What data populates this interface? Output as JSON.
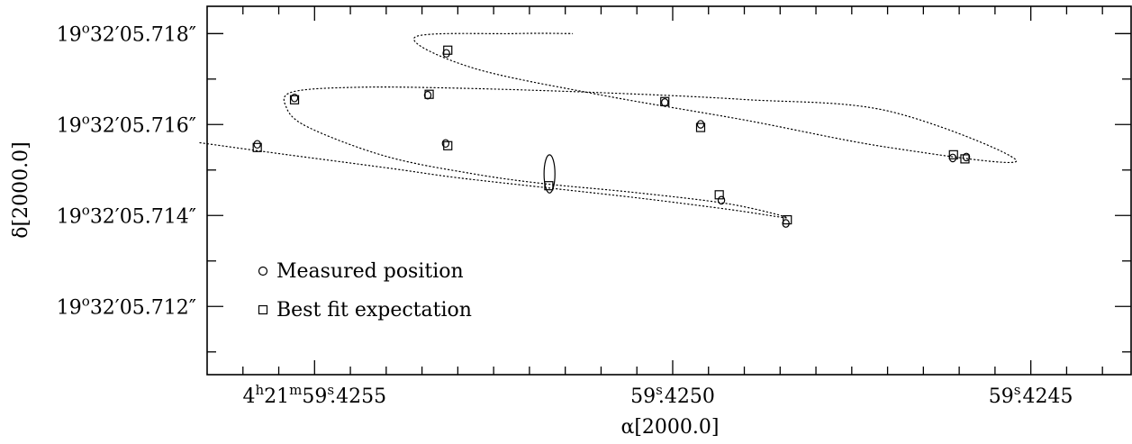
{
  "chart_data": {
    "type": "scatter",
    "xlabel": "α[2000.0]",
    "ylabel": "δ[2000.0]",
    "x_unit": "seconds of RA (4h21m59.xxxx s)",
    "y_unit": "arcsec of Dec (19°32'05.xxxxxx\")",
    "xlim": [
      59.42565,
      59.42436
    ],
    "ylim": [
      5.7105,
      5.7186
    ],
    "x_ticks": [
      {
        "value": 59.4255,
        "label_parts": [
          "4",
          "h",
          "21",
          "m",
          "59",
          "s",
          ".4255"
        ]
      },
      {
        "value": 59.425,
        "label_parts": [
          "59",
          "s",
          ".4250"
        ]
      },
      {
        "value": 59.4245,
        "label_parts": [
          "59",
          "s",
          ".4245"
        ]
      }
    ],
    "y_ticks": [
      {
        "value": 5.718,
        "label_parts": [
          "19",
          "o",
          "32′05.718″"
        ]
      },
      {
        "value": 5.716,
        "label_parts": [
          "19",
          "o",
          "32′05.716″"
        ]
      },
      {
        "value": 5.714,
        "label_parts": [
          "19",
          "o",
          "32′05.714″"
        ]
      },
      {
        "value": 5.712,
        "label_parts": [
          "19",
          "o",
          "32′05.712″"
        ]
      }
    ],
    "legend": {
      "placement": "bottom-left",
      "entries": [
        {
          "label": "Measured position",
          "marker": "circle"
        },
        {
          "label": "Best fit expectation",
          "marker": "square"
        }
      ]
    },
    "measured": [
      {
        "x": 59.42558,
        "y": 5.715565
      },
      {
        "x": 59.425528,
        "y": 5.716585
      },
      {
        "x": 59.425342,
        "y": 5.716645
      },
      {
        "x": 59.425317,
        "y": 5.715585
      },
      {
        "x": 59.425316,
        "y": 5.717565
      },
      {
        "x": 59.425172,
        "y": 5.714915,
        "ellipse": {
          "dx": 7.6e-06,
          "dy": 0.00042
        }
      },
      {
        "x": 59.425011,
        "y": 5.716485
      },
      {
        "x": 59.424961,
        "y": 5.716005
      },
      {
        "x": 59.424932,
        "y": 5.714335
      },
      {
        "x": 59.424842,
        "y": 5.713825
      },
      {
        "x": 59.424609,
        "y": 5.715265
      },
      {
        "x": 59.42459,
        "y": 5.715285
      }
    ],
    "best_fit": [
      {
        "x": 59.42558,
        "y": 5.715495
      },
      {
        "x": 59.425528,
        "y": 5.716545
      },
      {
        "x": 59.42534,
        "y": 5.716665
      },
      {
        "x": 59.425314,
        "y": 5.715535
      },
      {
        "x": 59.425314,
        "y": 5.717635
      },
      {
        "x": 59.425173,
        "y": 5.714655
      },
      {
        "x": 59.425011,
        "y": 5.716505
      },
      {
        "x": 59.424961,
        "y": 5.715935
      },
      {
        "x": 59.424935,
        "y": 5.714455
      },
      {
        "x": 59.42484,
        "y": 5.713905
      },
      {
        "x": 59.424608,
        "y": 5.715335
      },
      {
        "x": 59.424592,
        "y": 5.715245
      }
    ],
    "fit_curve": [
      {
        "x": 59.42566,
        "y": 5.7156
      },
      {
        "x": 59.42554,
        "y": 5.71534
      },
      {
        "x": 59.4254,
        "y": 5.71505
      },
      {
        "x": 59.4253,
        "y": 5.71483
      },
      {
        "x": 59.42517,
        "y": 5.7146
      },
      {
        "x": 59.42504,
        "y": 5.71437
      },
      {
        "x": 59.42492,
        "y": 5.71413
      },
      {
        "x": 59.42484,
        "y": 5.71395
      },
      {
        "x": 59.42492,
        "y": 5.71425
      },
      {
        "x": 59.42505,
        "y": 5.7145
      },
      {
        "x": 59.42518,
        "y": 5.7147
      },
      {
        "x": 59.42528,
        "y": 5.71492
      },
      {
        "x": 59.4254,
        "y": 5.7153
      },
      {
        "x": 59.42551,
        "y": 5.71595
      },
      {
        "x": 59.42554,
        "y": 5.7164
      },
      {
        "x": 59.42553,
        "y": 5.71672
      },
      {
        "x": 59.42544,
        "y": 5.71682
      },
      {
        "x": 59.4253,
        "y": 5.7168
      },
      {
        "x": 59.4251,
        "y": 5.7167
      },
      {
        "x": 59.4249,
        "y": 5.71655
      },
      {
        "x": 59.4247,
        "y": 5.7163
      },
      {
        "x": 59.42452,
        "y": 5.7152
      },
      {
        "x": 59.4247,
        "y": 5.7155
      },
      {
        "x": 59.4249,
        "y": 5.7161
      },
      {
        "x": 59.4251,
        "y": 5.71665
      },
      {
        "x": 59.42528,
        "y": 5.71725
      },
      {
        "x": 59.42536,
        "y": 5.71792
      },
      {
        "x": 59.42522,
        "y": 5.718
      },
      {
        "x": 59.42514,
        "y": 5.718
      }
    ]
  }
}
